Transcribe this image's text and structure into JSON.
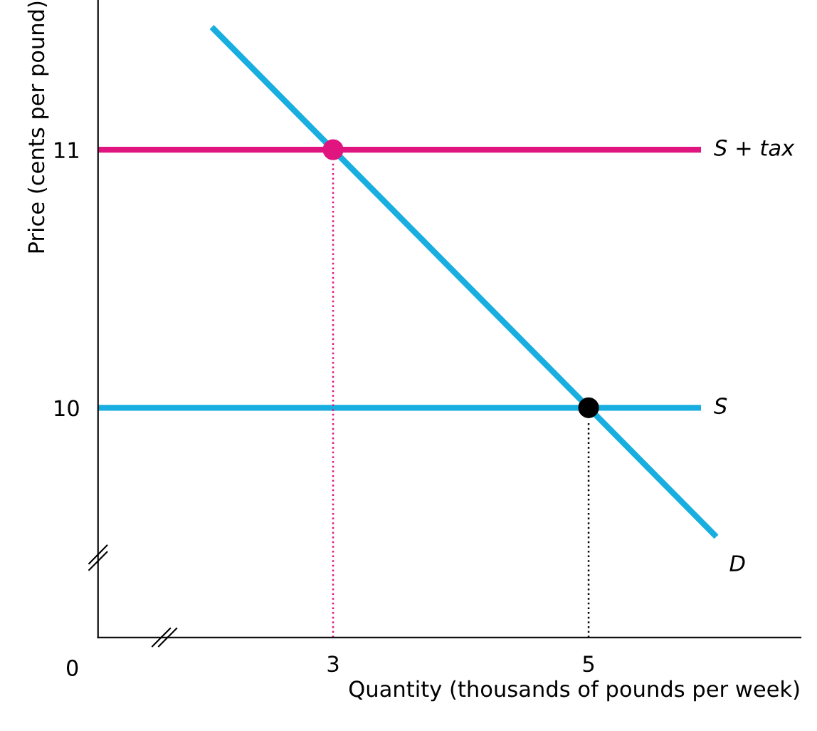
{
  "chart_data": {
    "type": "line",
    "xlabel": "Quantity (thousands of pounds per week)",
    "ylabel": "Price (cents per pound)",
    "xlim": [
      1.16,
      6.66
    ],
    "ylim": [
      9.11,
      11.58
    ],
    "xticks": [
      3,
      5
    ],
    "yticks": [
      10,
      11
    ],
    "annotations": [
      "0"
    ],
    "grid": false,
    "legend": false,
    "series": [
      {
        "name": "D",
        "color": "#19aee0",
        "x": [
          2.05,
          6.0
        ],
        "values": [
          11.475,
          9.5
        ]
      },
      {
        "name": "S",
        "color": "#19aee0",
        "x": [
          1.16,
          5.88
        ],
        "values": [
          10,
          10
        ]
      },
      {
        "name": "S + tax",
        "color": "#e0157f",
        "x": [
          1.16,
          5.88
        ],
        "values": [
          11,
          11
        ]
      },
      {
        "color": "#e0157f",
        "x": [
          3,
          3
        ],
        "values": [
          9.11,
          10.95
        ],
        "line_style": "dotted"
      },
      {
        "color": "#000000",
        "x": [
          5,
          5
        ],
        "values": [
          9.11,
          9.95
        ],
        "line_style": "dotted"
      },
      {
        "type": "scatter",
        "color": "#e0157f",
        "x": [
          3
        ],
        "values": [
          11
        ],
        "marker": "circle"
      },
      {
        "type": "scatter",
        "color": "#000000",
        "x": [
          5
        ],
        "values": [
          10
        ],
        "marker": "circle"
      }
    ]
  }
}
